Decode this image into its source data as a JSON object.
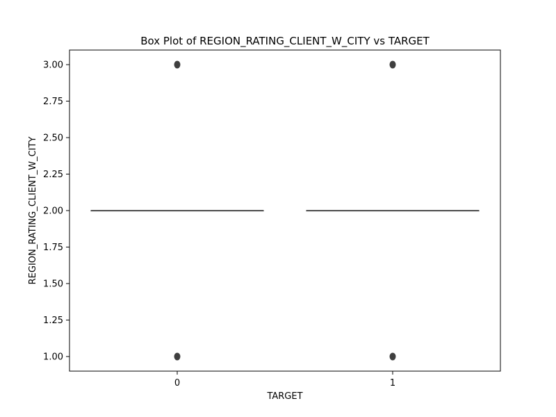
{
  "chart_data": {
    "type": "box",
    "title": "Box Plot of REGION_RATING_CLIENT_W_CITY vs TARGET",
    "xlabel": "TARGET",
    "ylabel": "REGION_RATING_CLIENT_W_CITY",
    "categories": [
      "0",
      "1"
    ],
    "ylim": [
      0.9,
      3.1
    ],
    "yticks": [
      1.0,
      1.25,
      1.5,
      1.75,
      2.0,
      2.25,
      2.5,
      2.75,
      3.0
    ],
    "ytick_labels": [
      "1.00",
      "1.25",
      "1.50",
      "1.75",
      "2.00",
      "2.25",
      "2.50",
      "2.75",
      "3.00"
    ],
    "grid": false,
    "boxes": [
      {
        "category": "0",
        "whisker_low": 2.0,
        "q1": 2.0,
        "median": 2.0,
        "q3": 2.0,
        "whisker_high": 2.0,
        "outliers": [
          1.0,
          3.0
        ]
      },
      {
        "category": "1",
        "whisker_low": 2.0,
        "q1": 2.0,
        "median": 2.0,
        "q3": 2.0,
        "whisker_high": 2.0,
        "outliers": [
          1.0,
          3.0
        ]
      }
    ],
    "colors": {
      "box_line": "#3f3f3f",
      "flier": "#3f3f3f"
    }
  }
}
